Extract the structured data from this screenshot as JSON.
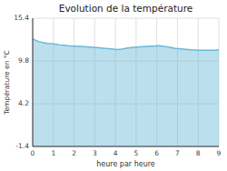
{
  "chart_data": {
    "type": "area",
    "title": "Evolution de la température",
    "x_label": "heure par heure",
    "y_label": "Température en °C",
    "color": "#6ab8d8",
    "grid": true,
    "xlim": [
      0,
      9
    ],
    "ylim": [
      -1.4,
      15.4
    ],
    "xticks": [
      0,
      1,
      2,
      3,
      4,
      5,
      6,
      7,
      8,
      9
    ],
    "yticks": [
      -1.4,
      4.2,
      9.8,
      15.4
    ],
    "x": [
      0.0,
      0.15,
      0.3,
      0.5,
      0.7,
      0.9,
      1.1,
      1.3,
      1.5,
      1.7,
      2.0,
      2.3,
      2.6,
      2.9,
      3.1,
      3.3,
      3.5,
      3.7,
      3.9,
      4.1,
      4.3,
      4.6,
      4.9,
      5.2,
      5.5,
      5.8,
      6.1,
      6.3,
      6.5,
      6.7,
      6.9,
      7.1,
      7.3,
      7.5,
      7.7,
      8.0,
      8.3,
      8.6,
      8.8,
      9.0
    ],
    "values": [
      12.7,
      12.5,
      12.35,
      12.2,
      12.1,
      12.05,
      12.0,
      11.9,
      11.85,
      11.8,
      11.75,
      11.7,
      11.65,
      11.6,
      11.55,
      11.5,
      11.45,
      11.4,
      11.35,
      11.3,
      11.35,
      11.5,
      11.6,
      11.65,
      11.7,
      11.75,
      11.8,
      11.75,
      11.65,
      11.55,
      11.45,
      11.4,
      11.35,
      11.3,
      11.25,
      11.2,
      11.2,
      11.2,
      11.2,
      11.25
    ]
  }
}
